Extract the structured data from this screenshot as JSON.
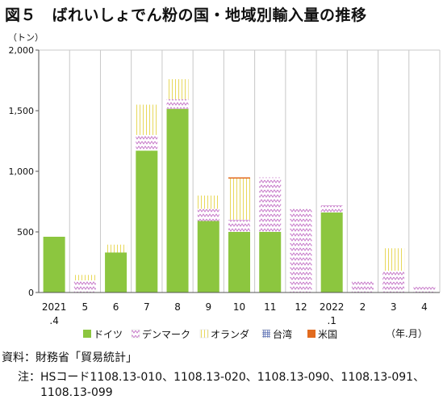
{
  "title": "図５　ばれいしょでん粉の国・地域別輸入量の推移",
  "source": "資料：財務省「貿易統計」",
  "note_label": "注：",
  "note_text": "HSコード1108.13-010、1108.13-020、1108.13-090、1108.13-091、1108.13-099",
  "chart_data": {
    "type": "bar",
    "stacked": true,
    "title": "図５　ばれいしょでん粉の国・地域別輸入量の推移",
    "ylabel": "（トン）",
    "xlabel": "（年.月）",
    "ylim": [
      0,
      2000
    ],
    "yticks": [
      0,
      500,
      1000,
      1500,
      2000
    ],
    "ytick_labels": [
      "0",
      "500",
      "1,000",
      "1,500",
      "2,000"
    ],
    "categories": [
      [
        "2021",
        ".4"
      ],
      [
        "5"
      ],
      [
        "6"
      ],
      [
        "7"
      ],
      [
        "8"
      ],
      [
        "9"
      ],
      [
        "10"
      ],
      [
        "11"
      ],
      [
        "12"
      ],
      [
        "2022",
        ".1"
      ],
      [
        "2"
      ],
      [
        "3"
      ],
      [
        "4"
      ]
    ],
    "legend_position": "bottom",
    "grid": "vertical",
    "series": [
      {
        "name": "ドイツ",
        "color": "#8cc63f",
        "pattern": "solid",
        "values": [
          460,
          0,
          330,
          1170,
          1515,
          590,
          500,
          500,
          0,
          660,
          0,
          0,
          0
        ]
      },
      {
        "name": "デンマーク",
        "color": "#c77ac9",
        "pattern": "zigzag",
        "values": [
          0,
          100,
          0,
          130,
          80,
          100,
          100,
          450,
          700,
          60,
          100,
          180,
          45
        ]
      },
      {
        "name": "オランダ",
        "color": "#e8d85a",
        "pattern": "vlines",
        "values": [
          0,
          45,
          65,
          250,
          165,
          110,
          340,
          0,
          0,
          0,
          0,
          185,
          0
        ]
      },
      {
        "name": "台湾",
        "color": "#5b6fb3",
        "pattern": "hash",
        "values": [
          0,
          0,
          0,
          0,
          0,
          0,
          0,
          0,
          0,
          0,
          0,
          0,
          0
        ]
      },
      {
        "name": "米国",
        "color": "#e26b1f",
        "pattern": "solid",
        "values": [
          0,
          0,
          0,
          0,
          0,
          0,
          10,
          0,
          0,
          0,
          0,
          0,
          0
        ]
      }
    ]
  }
}
